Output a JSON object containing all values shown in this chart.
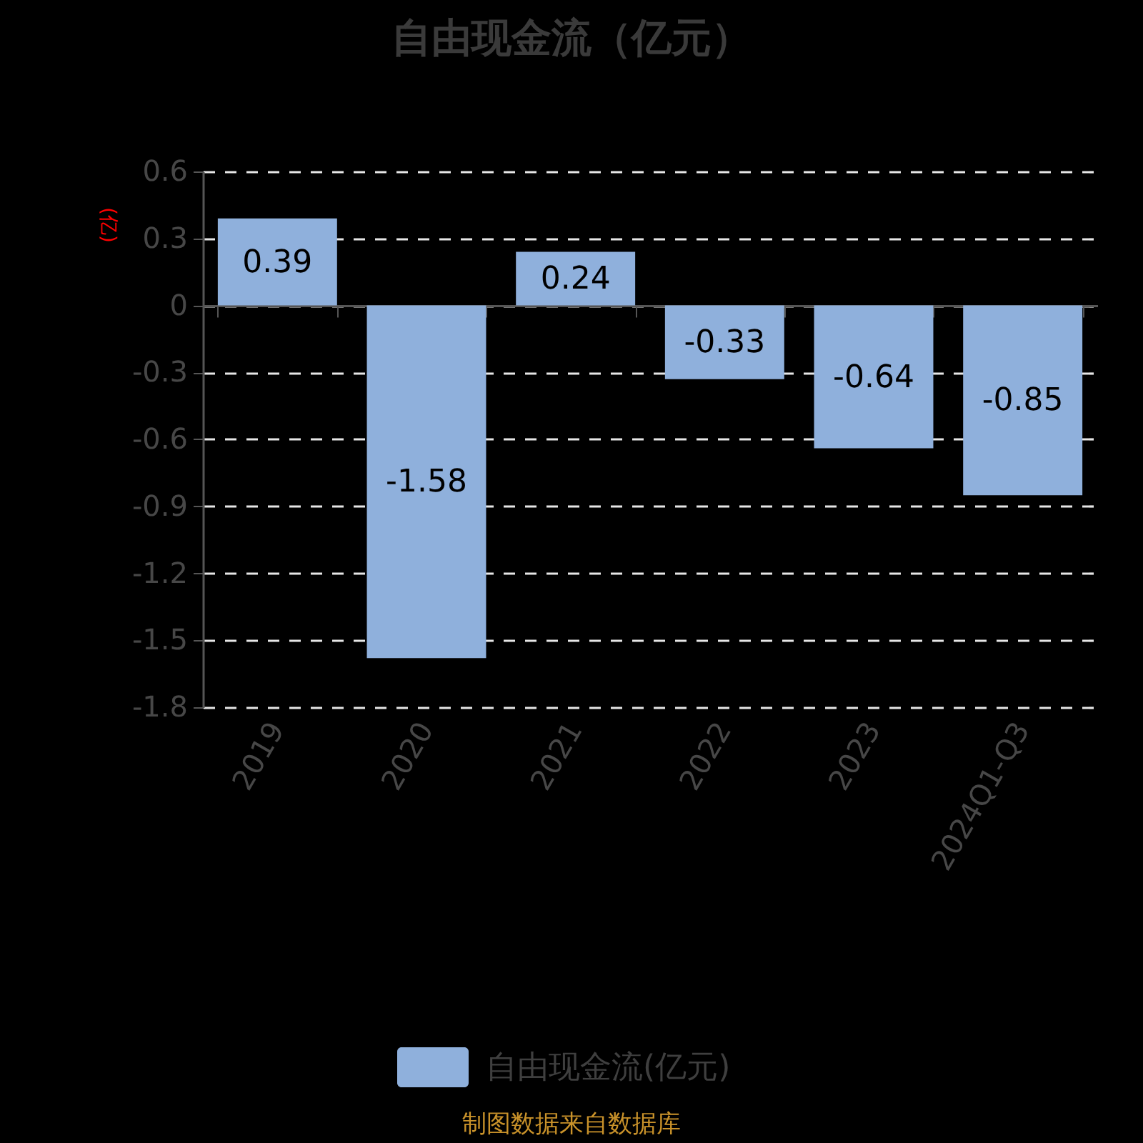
{
  "chart_data": {
    "type": "bar",
    "title": "自由现金流（亿元）",
    "ylabel": "(亿)",
    "categories": [
      "2019",
      "2020",
      "2021",
      "2022",
      "2023",
      "2024Q1-Q3"
    ],
    "series": [
      {
        "name": "自由现金流(亿元)",
        "color": "#8fb0dc",
        "values": [
          0.39,
          -1.58,
          0.24,
          -0.33,
          -0.64,
          -0.85
        ]
      }
    ],
    "ylim": [
      -1.8,
      0.6
    ],
    "yticks": [
      0.6,
      0.3,
      0,
      -0.3,
      -0.6,
      -0.9,
      -1.2,
      -1.5,
      -1.8
    ],
    "grid": "y",
    "legend": "bottom",
    "data_labels": true,
    "annotations": [
      "制图数据来自数据库"
    ]
  }
}
